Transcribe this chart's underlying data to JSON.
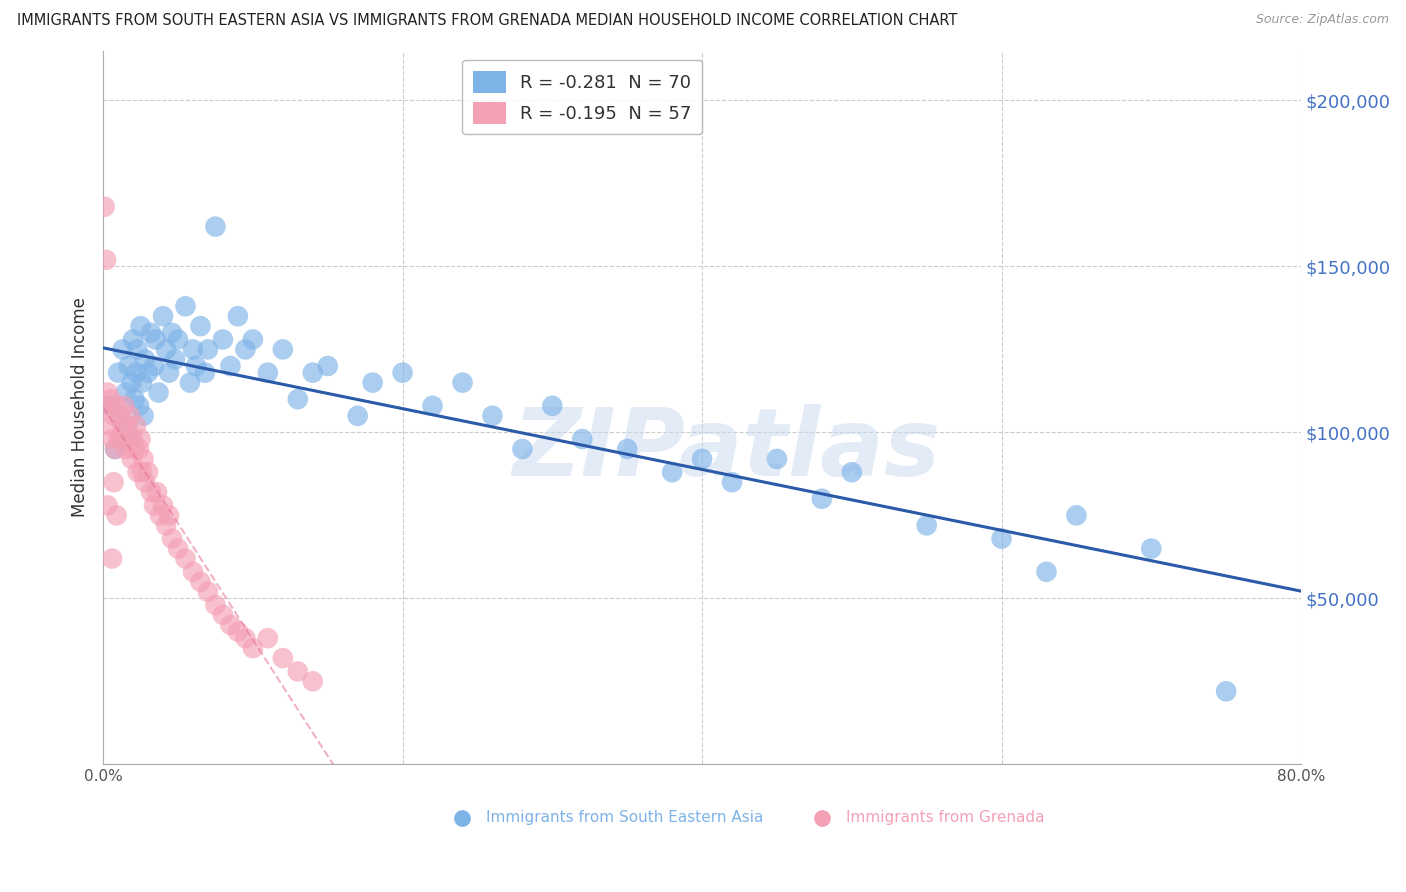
{
  "title": "IMMIGRANTS FROM SOUTH EASTERN ASIA VS IMMIGRANTS FROM GRENADA MEDIAN HOUSEHOLD INCOME CORRELATION CHART",
  "source": "Source: ZipAtlas.com",
  "ylabel": "Median Household Income",
  "yticks": [
    50000,
    100000,
    150000,
    200000
  ],
  "ytick_labels": [
    "$50,000",
    "$100,000",
    "$150,000",
    "$200,000"
  ],
  "xlim": [
    0.0,
    0.8
  ],
  "ylim": [
    0,
    215000
  ],
  "watermark": "ZIPatlas",
  "legend_blue_r": "-0.281",
  "legend_blue_n": "70",
  "legend_pink_r": "-0.195",
  "legend_pink_n": "57",
  "blue_color": "#7EB3E8",
  "pink_color": "#F4A0B5",
  "blue_line_color": "#2B5AA8",
  "pink_line_color": "#E87098",
  "blue_name": "Immigrants from South Eastern Asia",
  "pink_name": "Immigrants from Grenada",
  "series_blue_x": [
    0.005,
    0.008,
    0.01,
    0.012,
    0.013,
    0.015,
    0.016,
    0.017,
    0.018,
    0.019,
    0.02,
    0.021,
    0.022,
    0.023,
    0.024,
    0.025,
    0.026,
    0.027,
    0.028,
    0.03,
    0.032,
    0.034,
    0.035,
    0.037,
    0.04,
    0.042,
    0.044,
    0.046,
    0.048,
    0.05,
    0.055,
    0.058,
    0.06,
    0.062,
    0.065,
    0.068,
    0.07,
    0.075,
    0.08,
    0.085,
    0.09,
    0.095,
    0.1,
    0.11,
    0.12,
    0.13,
    0.14,
    0.15,
    0.17,
    0.18,
    0.2,
    0.22,
    0.24,
    0.26,
    0.28,
    0.3,
    0.32,
    0.35,
    0.38,
    0.4,
    0.42,
    0.45,
    0.48,
    0.5,
    0.55,
    0.6,
    0.63,
    0.65,
    0.7,
    0.75
  ],
  "series_blue_y": [
    108000,
    95000,
    118000,
    105000,
    125000,
    112000,
    102000,
    120000,
    98000,
    115000,
    128000,
    110000,
    118000,
    125000,
    108000,
    132000,
    115000,
    105000,
    122000,
    118000,
    130000,
    120000,
    128000,
    112000,
    135000,
    125000,
    118000,
    130000,
    122000,
    128000,
    138000,
    115000,
    125000,
    120000,
    132000,
    118000,
    125000,
    162000,
    128000,
    120000,
    135000,
    125000,
    128000,
    118000,
    125000,
    110000,
    118000,
    120000,
    105000,
    115000,
    118000,
    108000,
    115000,
    105000,
    95000,
    108000,
    98000,
    95000,
    88000,
    92000,
    85000,
    92000,
    80000,
    88000,
    72000,
    68000,
    58000,
    75000,
    65000,
    22000
  ],
  "series_pink_x": [
    0.001,
    0.002,
    0.003,
    0.004,
    0.005,
    0.006,
    0.007,
    0.008,
    0.009,
    0.01,
    0.011,
    0.012,
    0.013,
    0.014,
    0.015,
    0.016,
    0.017,
    0.018,
    0.019,
    0.02,
    0.021,
    0.022,
    0.023,
    0.024,
    0.025,
    0.026,
    0.027,
    0.028,
    0.03,
    0.032,
    0.034,
    0.036,
    0.038,
    0.04,
    0.042,
    0.044,
    0.046,
    0.05,
    0.055,
    0.06,
    0.065,
    0.07,
    0.075,
    0.08,
    0.085,
    0.09,
    0.095,
    0.1,
    0.11,
    0.12,
    0.13,
    0.14,
    0.005,
    0.007,
    0.009,
    0.003,
    0.006
  ],
  "series_pink_y": [
    168000,
    152000,
    112000,
    108000,
    102000,
    98000,
    105000,
    95000,
    108000,
    98000,
    105000,
    98000,
    102000,
    108000,
    95000,
    102000,
    98000,
    105000,
    92000,
    98000,
    95000,
    102000,
    88000,
    95000,
    98000,
    88000,
    92000,
    85000,
    88000,
    82000,
    78000,
    82000,
    75000,
    78000,
    72000,
    75000,
    68000,
    65000,
    62000,
    58000,
    55000,
    52000,
    48000,
    45000,
    42000,
    40000,
    38000,
    35000,
    38000,
    32000,
    28000,
    25000,
    110000,
    85000,
    75000,
    78000,
    62000
  ]
}
